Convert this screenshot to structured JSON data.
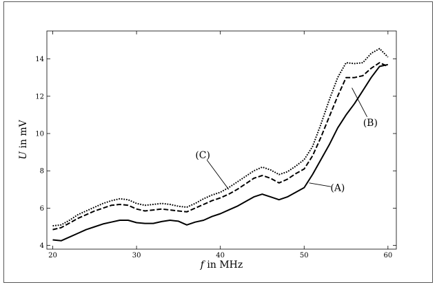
{
  "chart_data": {
    "type": "line",
    "title": "",
    "xlabel": {
      "var": "f",
      "rest": " in MHz"
    },
    "ylabel": {
      "var": "U",
      "rest": " in mV"
    },
    "xlim": [
      19.3,
      61
    ],
    "ylim": [
      3.8,
      15.5
    ],
    "xticks": [
      20,
      30,
      40,
      50,
      60
    ],
    "yticks": [
      4,
      6,
      8,
      10,
      12,
      14
    ],
    "grid": false,
    "series": [
      {
        "style": "solid",
        "x": [
          20,
          21,
          22,
          23,
          24,
          25,
          26,
          27,
          28,
          29,
          30,
          31,
          32,
          33,
          34,
          35,
          36,
          37,
          38,
          39,
          40,
          41,
          42,
          43,
          44,
          45,
          46,
          47,
          48,
          49,
          50,
          51,
          52,
          53,
          54,
          55,
          56,
          57,
          58,
          59,
          60
        ],
        "y": [
          4.3,
          4.25,
          4.45,
          4.65,
          4.85,
          5.0,
          5.15,
          5.25,
          5.35,
          5.35,
          5.22,
          5.18,
          5.18,
          5.28,
          5.35,
          5.3,
          5.1,
          5.25,
          5.35,
          5.55,
          5.7,
          5.9,
          6.1,
          6.35,
          6.6,
          6.75,
          6.6,
          6.45,
          6.6,
          6.85,
          7.1,
          7.8,
          8.6,
          9.4,
          10.3,
          11.0,
          11.6,
          12.3,
          13.0,
          13.6,
          13.7
        ]
      },
      {
        "style": "dashed",
        "x": [
          20,
          21,
          22,
          23,
          24,
          25,
          26,
          27,
          28,
          29,
          30,
          31,
          32,
          33,
          34,
          35,
          36,
          37,
          38,
          39,
          40,
          41,
          42,
          43,
          44,
          45,
          46,
          47,
          48,
          49,
          50,
          51,
          52,
          53,
          54,
          55,
          56,
          57,
          58,
          59,
          60
        ],
        "y": [
          4.85,
          4.95,
          5.2,
          5.45,
          5.65,
          5.85,
          6.0,
          6.15,
          6.2,
          6.15,
          5.95,
          5.85,
          5.9,
          5.95,
          5.9,
          5.85,
          5.8,
          6.0,
          6.2,
          6.4,
          6.55,
          6.75,
          7.0,
          7.3,
          7.6,
          7.75,
          7.6,
          7.35,
          7.55,
          7.85,
          8.1,
          8.8,
          9.8,
          10.9,
          12.0,
          13.0,
          13.0,
          13.1,
          13.5,
          13.8,
          13.6
        ]
      },
      {
        "style": "dotted",
        "x": [
          20,
          21,
          22,
          23,
          24,
          25,
          26,
          27,
          28,
          29,
          30,
          31,
          32,
          33,
          34,
          35,
          36,
          37,
          38,
          39,
          40,
          41,
          42,
          43,
          44,
          45,
          46,
          47,
          48,
          49,
          50,
          51,
          52,
          53,
          54,
          55,
          56,
          57,
          58,
          59,
          60
        ],
        "y": [
          5.05,
          5.1,
          5.35,
          5.65,
          5.85,
          6.05,
          6.25,
          6.4,
          6.5,
          6.45,
          6.25,
          6.15,
          6.2,
          6.25,
          6.2,
          6.1,
          6.05,
          6.25,
          6.5,
          6.7,
          6.85,
          7.1,
          7.4,
          7.7,
          8.0,
          8.2,
          8.05,
          7.8,
          7.95,
          8.25,
          8.6,
          9.3,
          10.5,
          11.8,
          13.0,
          13.8,
          13.75,
          13.8,
          14.3,
          14.55,
          14.1
        ]
      }
    ],
    "annotations": [
      {
        "text": "(A)",
        "x": 54,
        "y": 7.1,
        "ax": 50.6,
        "ay": 7.35
      },
      {
        "text": "(B)",
        "x": 57.9,
        "y": 10.6,
        "ax": 55.7,
        "ay": 12.45
      },
      {
        "text": "(C)",
        "x": 37.9,
        "y": 8.85,
        "ax": 41.0,
        "ay": 7.0
      }
    ]
  }
}
